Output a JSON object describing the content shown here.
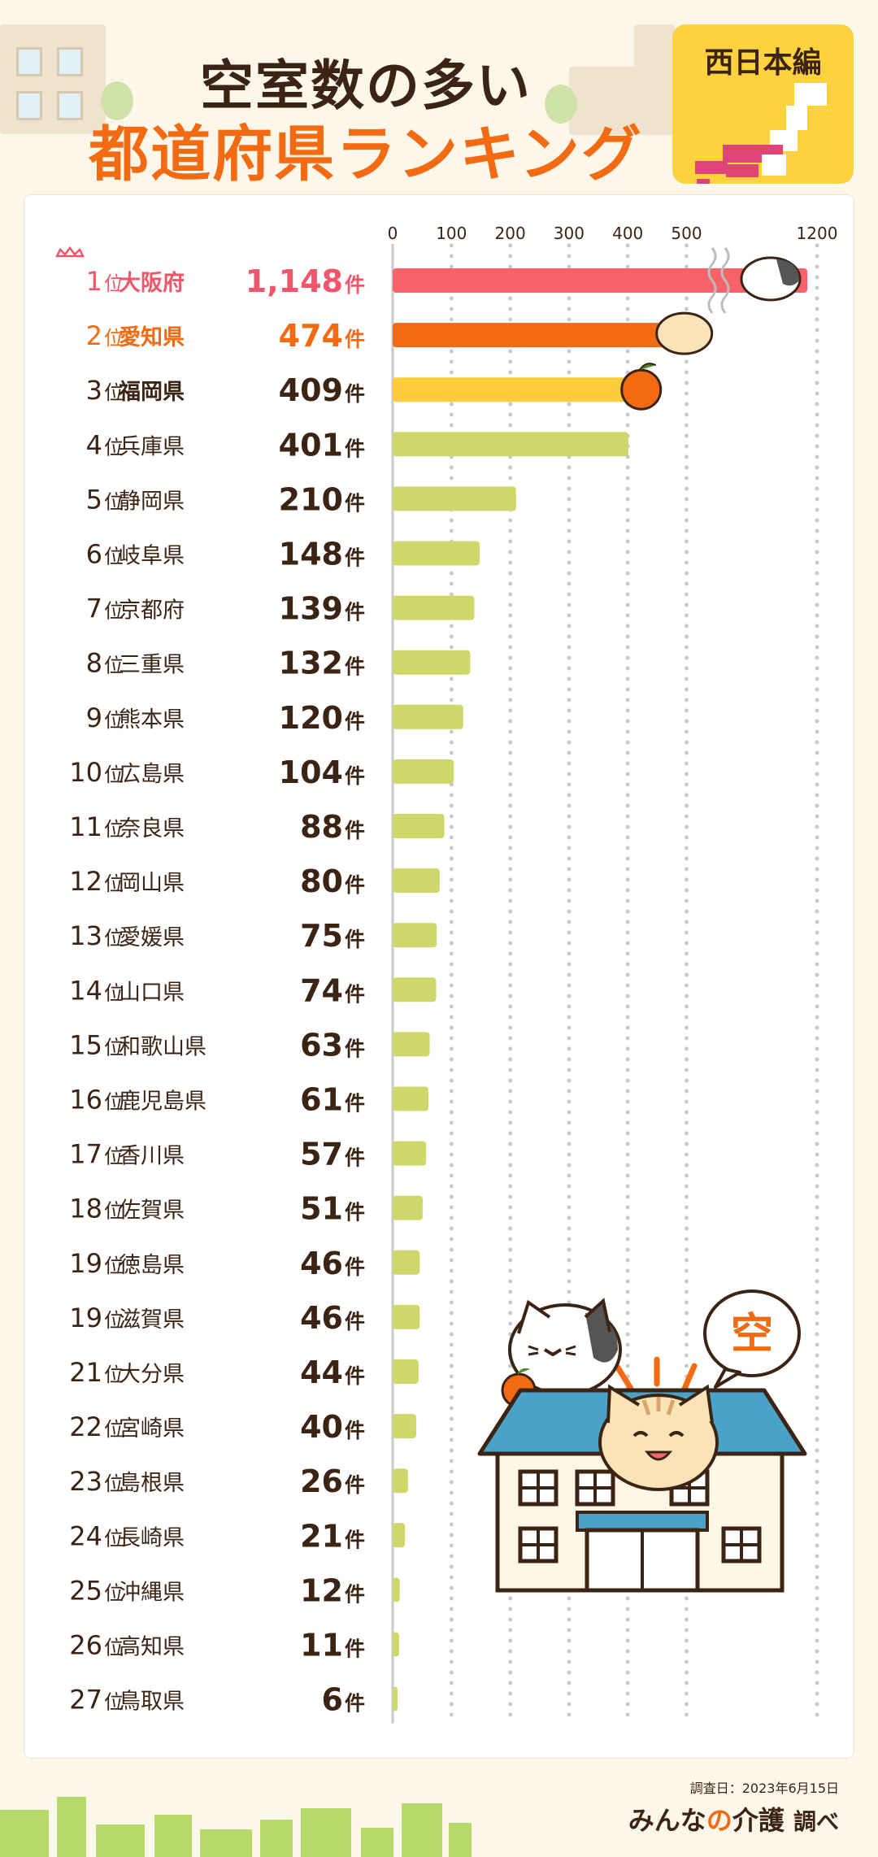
{
  "header": {
    "title_line1": "空室数の多い",
    "title_line2": "都道府県ランキング",
    "badge": "西日本編"
  },
  "chart_data": {
    "type": "bar",
    "orientation": "horizontal",
    "axis_ticks": [
      "0",
      "100",
      "200",
      "300",
      "400",
      "500",
      "1200"
    ],
    "rank_suffix": "位",
    "unit": "件",
    "rows": [
      {
        "rank": "1",
        "name": "大阪府",
        "value": 1148,
        "label": "1,148"
      },
      {
        "rank": "2",
        "name": "愛知県",
        "value": 474,
        "label": "474"
      },
      {
        "rank": "3",
        "name": "福岡県",
        "value": 409,
        "label": "409"
      },
      {
        "rank": "4",
        "name": "兵庫県",
        "value": 401,
        "label": "401"
      },
      {
        "rank": "5",
        "name": "静岡県",
        "value": 210,
        "label": "210"
      },
      {
        "rank": "6",
        "name": "岐阜県",
        "value": 148,
        "label": "148"
      },
      {
        "rank": "7",
        "name": "京都府",
        "value": 139,
        "label": "139"
      },
      {
        "rank": "8",
        "name": "三重県",
        "value": 132,
        "label": "132"
      },
      {
        "rank": "9",
        "name": "熊本県",
        "value": 120,
        "label": "120"
      },
      {
        "rank": "10",
        "name": "広島県",
        "value": 104,
        "label": "104"
      },
      {
        "rank": "11",
        "name": "奈良県",
        "value": 88,
        "label": "88"
      },
      {
        "rank": "12",
        "name": "岡山県",
        "value": 80,
        "label": "80"
      },
      {
        "rank": "13",
        "name": "愛媛県",
        "value": 75,
        "label": "75"
      },
      {
        "rank": "14",
        "name": "山口県",
        "value": 74,
        "label": "74"
      },
      {
        "rank": "15",
        "name": "和歌山県",
        "value": 63,
        "label": "63"
      },
      {
        "rank": "16",
        "name": "鹿児島県",
        "value": 61,
        "label": "61"
      },
      {
        "rank": "17",
        "name": "香川県",
        "value": 57,
        "label": "57"
      },
      {
        "rank": "18",
        "name": "佐賀県",
        "value": 51,
        "label": "51"
      },
      {
        "rank": "19",
        "name": "徳島県",
        "value": 46,
        "label": "46"
      },
      {
        "rank": "19",
        "name": "滋賀県",
        "value": 46,
        "label": "46"
      },
      {
        "rank": "21",
        "name": "大分県",
        "value": 44,
        "label": "44"
      },
      {
        "rank": "22",
        "name": "宮崎県",
        "value": 40,
        "label": "40"
      },
      {
        "rank": "23",
        "name": "島根県",
        "value": 26,
        "label": "26"
      },
      {
        "rank": "24",
        "name": "長崎県",
        "value": 21,
        "label": "21"
      },
      {
        "rank": "25",
        "name": "沖縄県",
        "value": 12,
        "label": "12"
      },
      {
        "rank": "26",
        "name": "高知県",
        "value": 11,
        "label": "11"
      },
      {
        "rank": "27",
        "name": "鳥取県",
        "value": 6,
        "label": "6"
      }
    ],
    "colors": {
      "rank1": "#f8636a",
      "rank2": "#f26a12",
      "rank3": "#fdcc3a",
      "others": "#cfd66a",
      "text_rank1": "#f0556a",
      "text_rank2": "#f26a12",
      "text_default": "#3c2415"
    }
  },
  "illustration": {
    "speech_bubble": "空"
  },
  "footer": {
    "survey_date": "調査日：2023年6月15日",
    "brand_prefix": "みんな",
    "brand_no": "の",
    "brand_main": "介護",
    "brand_suffix": "調べ"
  }
}
